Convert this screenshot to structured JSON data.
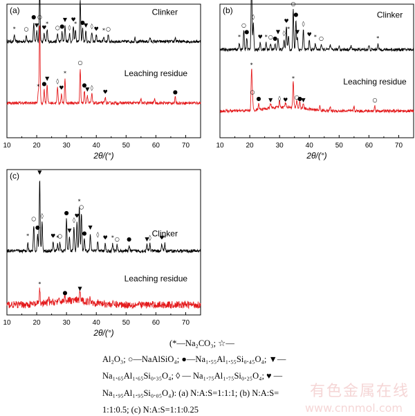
{
  "chart_data": [
    {
      "id": "a",
      "panel_label": "(a)",
      "type": "line",
      "xlabel": "2θ/(°)",
      "xlim": [
        10,
        75
      ],
      "xticks": [
        10,
        20,
        30,
        40,
        50,
        60,
        70
      ],
      "series": [
        {
          "name": "Clinker",
          "color": "#000000",
          "offset": 0.72,
          "peaks": [
            [
              12.5,
              0.05
            ],
            [
              16.5,
              0.05
            ],
            [
              19,
              0.14
            ],
            [
              20,
              0.08
            ],
            [
              21,
              0.4
            ],
            [
              22.5,
              0.06
            ],
            [
              23.5,
              0.09
            ],
            [
              27,
              0.06
            ],
            [
              28.5,
              0.07
            ],
            [
              29.5,
              0.12
            ],
            [
              31,
              0.06
            ],
            [
              32.3,
              0.12
            ],
            [
              33,
              0.09
            ],
            [
              34.6,
              0.32
            ],
            [
              35.4,
              0.1
            ],
            [
              36.5,
              0.08
            ],
            [
              38.5,
              0.07
            ],
            [
              40,
              0.05
            ],
            [
              42.5,
              0.04
            ],
            [
              44,
              0.05
            ],
            [
              53,
              0.03
            ],
            [
              58,
              0.03
            ],
            [
              66.5,
              0.03
            ]
          ]
        },
        {
          "name": "Leaching residue",
          "color": "#e41a1c",
          "offset": 0.26,
          "peaks": [
            [
              20.5,
              0.08
            ],
            [
              21,
              0.6
            ],
            [
              22.5,
              0.1
            ],
            [
              23.5,
              0.14
            ],
            [
              27,
              0.12
            ],
            [
              28.3,
              0.07
            ],
            [
              29.5,
              0.18
            ],
            [
              34.6,
              0.26
            ],
            [
              36,
              0.09
            ],
            [
              37,
              0.06
            ],
            [
              38.5,
              0.07
            ],
            [
              43,
              0.04
            ],
            [
              55,
              0.03
            ],
            [
              59.5,
              0.03
            ],
            [
              66.5,
              0.04
            ]
          ]
        }
      ],
      "labels": [
        {
          "text": "Clinker",
          "x": 63,
          "y": 0.92
        },
        {
          "text": "Leaching residue",
          "x": 60,
          "y": 0.46
        }
      ]
    },
    {
      "id": "b",
      "panel_label": "(b)",
      "type": "line",
      "xlabel": "2θ/(°)",
      "xlim": [
        10,
        75
      ],
      "xticks": [
        10,
        20,
        30,
        40,
        50,
        60,
        70
      ],
      "series": [
        {
          "name": "Clinker",
          "color": "#000000",
          "offset": 0.66,
          "peaks": [
            [
              16.5,
              0.05
            ],
            [
              18,
              0.14
            ],
            [
              19,
              0.09
            ],
            [
              20.6,
              0.55
            ],
            [
              21.2,
              0.2
            ],
            [
              23.5,
              0.05
            ],
            [
              25.5,
              0.05
            ],
            [
              27,
              0.05
            ],
            [
              28.5,
              0.04
            ],
            [
              29.5,
              0.09
            ],
            [
              31.5,
              0.08
            ],
            [
              32.3,
              0.17
            ],
            [
              33,
              0.11
            ],
            [
              34.6,
              0.3
            ],
            [
              35.5,
              0.22
            ],
            [
              36,
              0.09
            ],
            [
              38,
              0.15
            ],
            [
              40,
              0.07
            ],
            [
              42,
              0.05
            ],
            [
              44,
              0.04
            ],
            [
              47,
              0.03
            ],
            [
              50,
              0.03
            ],
            [
              54,
              0.03
            ],
            [
              60,
              0.03
            ],
            [
              63,
              0.04
            ]
          ]
        },
        {
          "name": "Leaching residue",
          "color": "#e41a1c",
          "offset": 0.2,
          "peaks": [
            [
              20.6,
              0.3
            ],
            [
              20.9,
              0.1
            ],
            [
              23,
              0.05
            ],
            [
              27,
              0.04
            ],
            [
              30,
              0.05
            ],
            [
              32,
              0.04
            ],
            [
              34.6,
              0.2
            ],
            [
              35.8,
              0.06
            ],
            [
              36.8,
              0.05
            ],
            [
              38,
              0.04
            ],
            [
              43.5,
              0.03
            ],
            [
              47,
              0.03
            ],
            [
              55,
              0.03
            ],
            [
              62,
              0.04
            ]
          ]
        }
      ],
      "labels": [
        {
          "text": "Clinker",
          "x": 67,
          "y": 0.9
        },
        {
          "text": "Leaching residue",
          "x": 62,
          "y": 0.4
        }
      ]
    },
    {
      "id": "c",
      "panel_label": "(c)",
      "type": "line",
      "xlabel": "2θ/(°)",
      "xlim": [
        10,
        75
      ],
      "xticks": [
        10,
        20,
        30,
        40,
        50,
        60,
        70
      ],
      "series": [
        {
          "name": "Clinker",
          "color": "#000000",
          "offset": 0.44,
          "peaks": [
            [
              17,
              0.06
            ],
            [
              19,
              0.18
            ],
            [
              20.3,
              0.12
            ],
            [
              21,
              0.5
            ],
            [
              21.8,
              0.2
            ],
            [
              25.5,
              0.06
            ],
            [
              27,
              0.05
            ],
            [
              27.8,
              0.06
            ],
            [
              30,
              0.22
            ],
            [
              31,
              0.1
            ],
            [
              32.5,
              0.17
            ],
            [
              33.5,
              0.2
            ],
            [
              34.3,
              0.3
            ],
            [
              35,
              0.26
            ],
            [
              36,
              0.08
            ],
            [
              38,
              0.12
            ],
            [
              40.5,
              0.07
            ],
            [
              43,
              0.05
            ],
            [
              45.5,
              0.05
            ],
            [
              47,
              0.04
            ],
            [
              51,
              0.04
            ],
            [
              57,
              0.04
            ],
            [
              58,
              0.05
            ],
            [
              62,
              0.05
            ],
            [
              63,
              0.05
            ]
          ]
        },
        {
          "name": "Leaching residue",
          "color": "#e41a1c",
          "offset": 0.07,
          "peaks": [
            [
              21,
              0.1
            ],
            [
              24,
              0.03
            ],
            [
              29.5,
              0.04
            ],
            [
              34.5,
              0.07
            ],
            [
              38,
              0.03
            ]
          ]
        }
      ],
      "labels": [
        {
          "text": "Clinker",
          "x": 63,
          "y": 0.54
        },
        {
          "text": "Leaching residue",
          "x": 60,
          "y": 0.23
        }
      ]
    }
  ],
  "legend": {
    "line1": "(*—Na₂CO₃; ☆—",
    "line2": "Al₂O₃; ○—NaAlSiO₄; ●—Na₁.₅₅Al₁.₅₅Si₀.₄₅O₄; ▼—",
    "line3": "Na₁.₆₅Al₁.₆₅Si₀.₃₅O₄; ◊ — Na₁.₇₅Al₁.₇₅Si₀.₂₅O₄; ♥ —",
    "line4": "Na₁.₉₅Al₁.₉₅Si₀.₀₅O₄): (a) N:A:S=1:1:1; (b) N:A:S=",
    "line5": "1:1:0.5; (c) N:A:S=1:1:0.25"
  },
  "watermark": {
    "line1": "有色金属在线",
    "line2": "www.cnnmol.com"
  }
}
